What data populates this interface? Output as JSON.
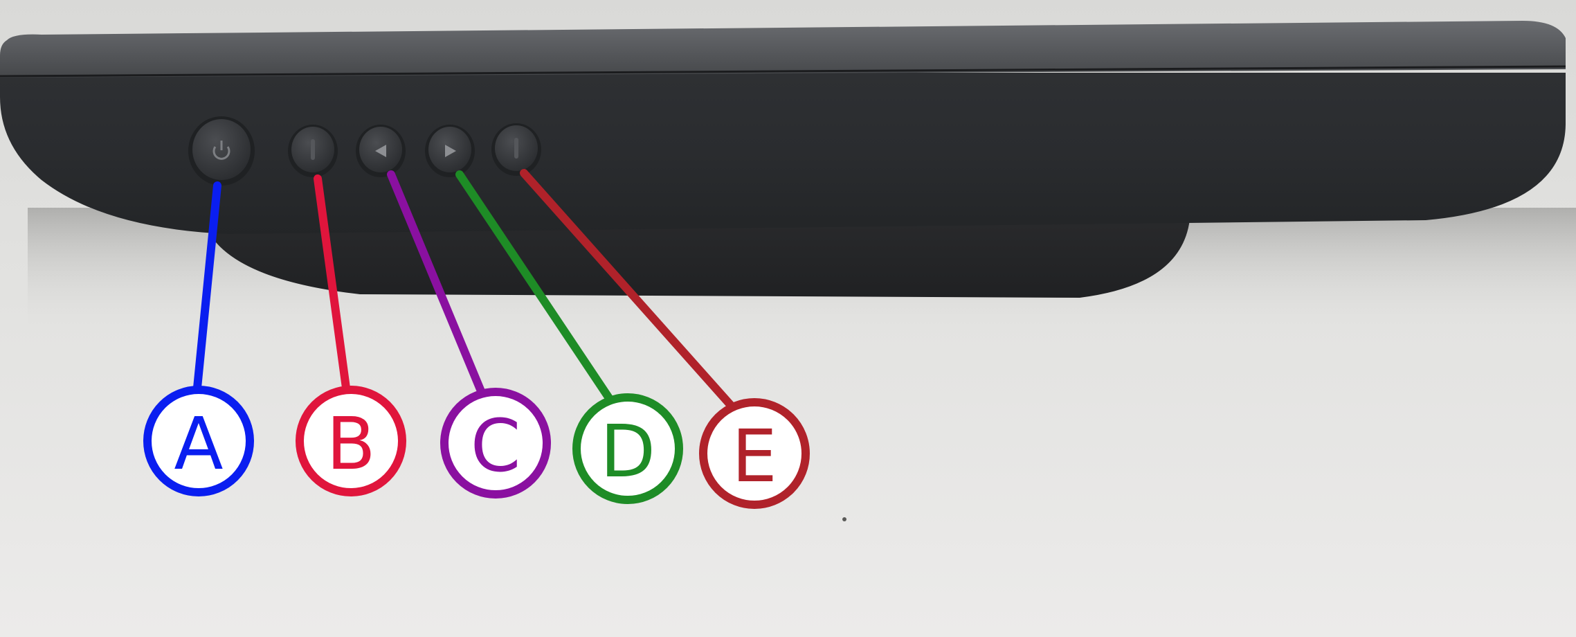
{
  "device": {
    "name": "monitor-base",
    "buttons": [
      {
        "id": "power",
        "icon": "power-icon"
      },
      {
        "id": "menu",
        "icon": "none"
      },
      {
        "id": "left",
        "icon": "left-triangle-icon"
      },
      {
        "id": "right",
        "icon": "right-triangle-icon"
      },
      {
        "id": "enter",
        "icon": "none"
      }
    ]
  },
  "callouts": [
    {
      "letter": "A",
      "color": "#0a1ef0",
      "target": "power"
    },
    {
      "letter": "B",
      "color": "#e0153c",
      "target": "menu"
    },
    {
      "letter": "C",
      "color": "#8a10a0",
      "target": "left"
    },
    {
      "letter": "D",
      "color": "#1e8c26",
      "target": "right"
    },
    {
      "letter": "E",
      "color": "#b0222a",
      "target": "enter"
    }
  ]
}
